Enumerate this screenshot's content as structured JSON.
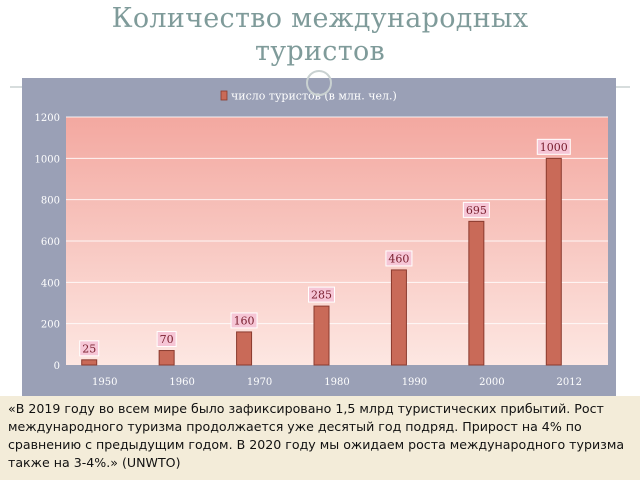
{
  "slide": {
    "title_line1": "Количество международных",
    "title_line2": "туристов",
    "caption": "«В 2019 году во всем мире было зафиксировано 1,5 млрд туристических прибытий. Рост международного туризма продолжается уже десятый год подряд. Прирост на 4% по сравнению с предыдущим годом. В 2020 году мы ожидаем роста международного туризма также на 3-4%.» (UNWTO)"
  },
  "colors": {
    "bar": "#c96a58",
    "bar_outline": "#8a3a2e",
    "plot_top": "#f3a8a0",
    "plot_bottom": "#fde7e2",
    "frame": "#9aa0b6",
    "label_bg": "#f6c6d6",
    "label_text": "#7a2030"
  },
  "chart_data": {
    "type": "bar",
    "categories": [
      "1950",
      "1960",
      "1970",
      "1980",
      "1990",
      "2000",
      "2012"
    ],
    "series": [
      {
        "name": "число туристов (в млн. чел.)",
        "values": [
          25,
          70,
          160,
          285,
          460,
          695,
          1000
        ]
      }
    ],
    "data_labels": [
      "25",
      "70",
      "160",
      "285",
      "460",
      "695",
      "1000"
    ],
    "y_ticks": [
      "0",
      "200",
      "400",
      "600",
      "800",
      "1000",
      "1200"
    ],
    "ylim": [
      0,
      1200
    ],
    "grid": true,
    "legend_position": "top"
  }
}
